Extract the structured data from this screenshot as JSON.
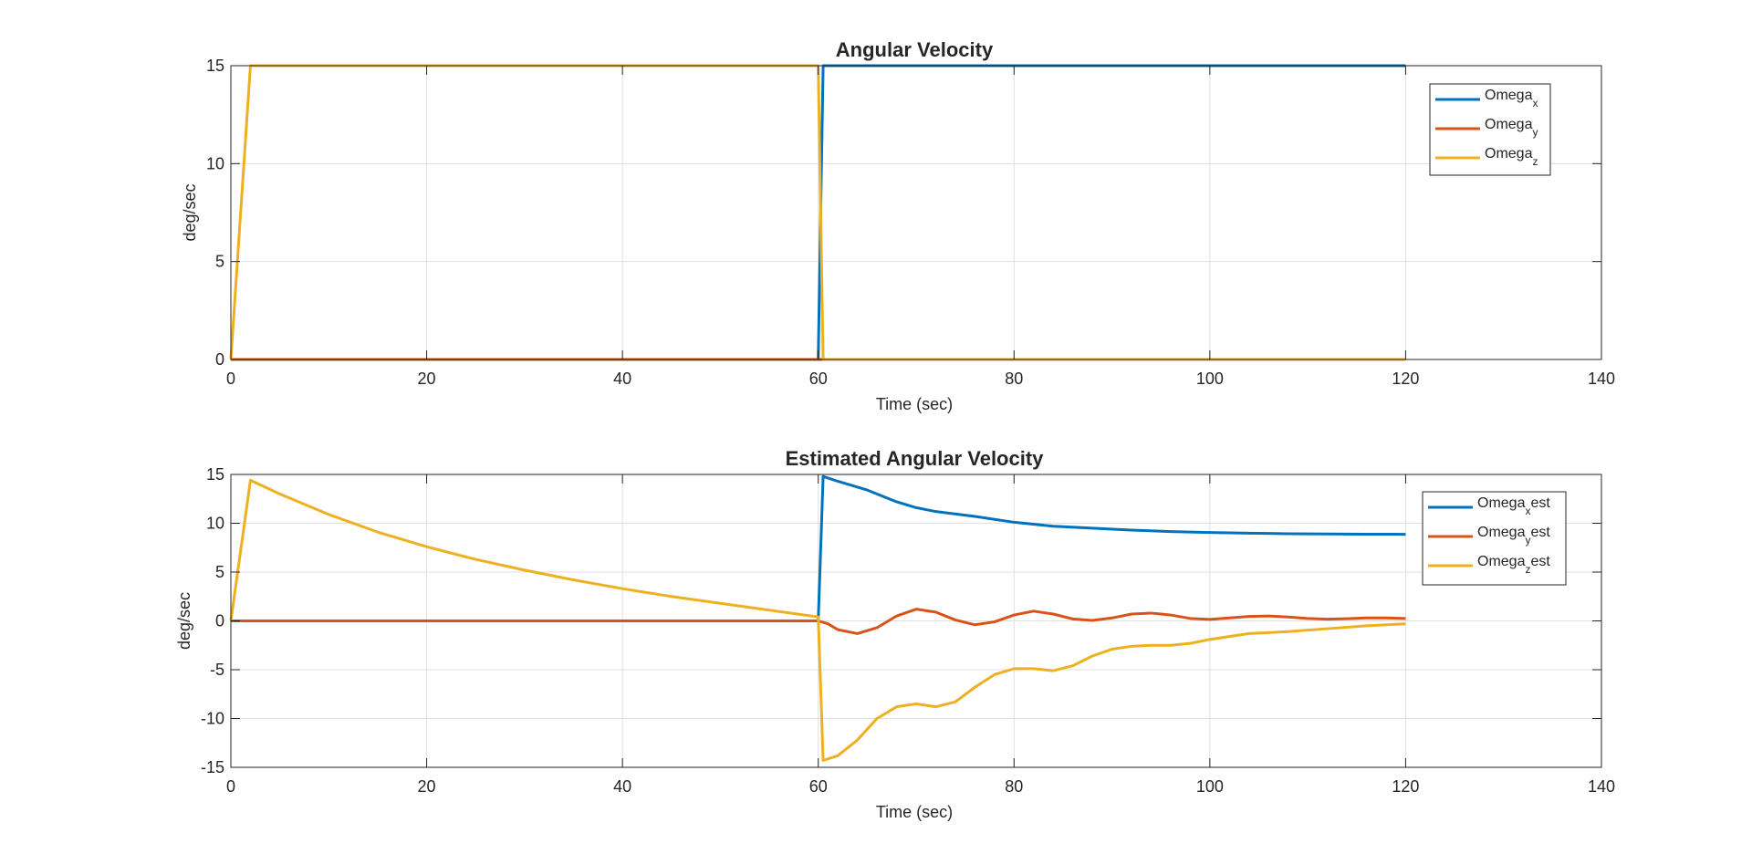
{
  "colors": {
    "omega_x": "#0072BD",
    "omega_y": "#D95319",
    "omega_z": "#EDB120",
    "axis": "#262626",
    "grid": "#dfdfdf"
  },
  "chart_data": [
    {
      "type": "line",
      "title": "Angular Velocity",
      "xlabel": "Time (sec)",
      "ylabel": "deg/sec",
      "xlim": [
        0,
        140
      ],
      "ylim": [
        0,
        15
      ],
      "xticks": [
        0,
        20,
        40,
        60,
        80,
        100,
        120,
        140
      ],
      "yticks": [
        0,
        5,
        10,
        15
      ],
      "grid": true,
      "legend_position": "top-right",
      "series": [
        {
          "name": "Omega",
          "subscript": "x",
          "suffix": "",
          "color_key": "omega_x",
          "x": [
            0,
            60,
            60.5,
            120
          ],
          "y": [
            0,
            0,
            15,
            15
          ]
        },
        {
          "name": "Omega",
          "subscript": "y",
          "suffix": "",
          "color_key": "omega_y",
          "x": [
            0,
            120
          ],
          "y": [
            0,
            0
          ]
        },
        {
          "name": "Omega",
          "subscript": "z",
          "suffix": "",
          "color_key": "omega_z",
          "x": [
            0,
            2,
            60,
            60.5,
            120
          ],
          "y": [
            0,
            15,
            15,
            0,
            0
          ]
        }
      ]
    },
    {
      "type": "line",
      "title": "Estimated Angular Velocity",
      "xlabel": "Time (sec)",
      "ylabel": "deg/sec",
      "xlim": [
        0,
        140
      ],
      "ylim": [
        -15,
        15
      ],
      "xticks": [
        0,
        20,
        40,
        60,
        80,
        100,
        120,
        140
      ],
      "yticks": [
        -15,
        -10,
        -5,
        0,
        5,
        10,
        15
      ],
      "grid": true,
      "legend_position": "top-right",
      "series": [
        {
          "name": "Omega",
          "subscript": "x",
          "suffix": "est",
          "color_key": "omega_x",
          "x": [
            0,
            60,
            60.5,
            62,
            65,
            68,
            70,
            72,
            76,
            80,
            84,
            88,
            92,
            96,
            100,
            104,
            108,
            112,
            116,
            120
          ],
          "y": [
            0,
            0,
            14.8,
            14.3,
            13.4,
            12.2,
            11.6,
            11.2,
            10.7,
            10.1,
            9.7,
            9.5,
            9.3,
            9.15,
            9.05,
            8.98,
            8.93,
            8.9,
            8.88,
            8.87
          ]
        },
        {
          "name": "Omega",
          "subscript": "y",
          "suffix": "est",
          "color_key": "omega_y",
          "x": [
            0,
            60,
            61,
            62,
            64,
            66,
            68,
            70,
            72,
            74,
            76,
            78,
            80,
            82,
            84,
            86,
            88,
            90,
            92,
            94,
            96,
            98,
            100,
            102,
            104,
            106,
            108,
            110,
            112,
            114,
            116,
            118,
            120
          ],
          "y": [
            0,
            0,
            -0.3,
            -0.9,
            -1.3,
            -0.7,
            0.5,
            1.2,
            0.9,
            0.1,
            -0.4,
            -0.1,
            0.6,
            1.0,
            0.7,
            0.2,
            0.05,
            0.3,
            0.7,
            0.8,
            0.6,
            0.25,
            0.15,
            0.3,
            0.45,
            0.5,
            0.4,
            0.25,
            0.18,
            0.22,
            0.3,
            0.3,
            0.25
          ]
        },
        {
          "name": "Omega",
          "subscript": "z",
          "suffix": "est",
          "color_key": "omega_z",
          "x": [
            0,
            2,
            5,
            10,
            15,
            20,
            25,
            30,
            35,
            40,
            45,
            50,
            55,
            60,
            60.5,
            62,
            64,
            66,
            68,
            70,
            72,
            74,
            76,
            78,
            80,
            82,
            84,
            86,
            88,
            90,
            92,
            94,
            96,
            98,
            100,
            104,
            108,
            112,
            116,
            120
          ],
          "y": [
            0,
            14.4,
            13.0,
            10.9,
            9.1,
            7.6,
            6.3,
            5.2,
            4.2,
            3.3,
            2.5,
            1.8,
            1.1,
            0.4,
            -14.3,
            -13.8,
            -12.2,
            -10.0,
            -8.8,
            -8.5,
            -8.8,
            -8.3,
            -6.8,
            -5.5,
            -4.9,
            -4.9,
            -5.1,
            -4.6,
            -3.6,
            -2.9,
            -2.6,
            -2.5,
            -2.5,
            -2.3,
            -1.9,
            -1.3,
            -1.1,
            -0.8,
            -0.5,
            -0.3
          ]
        }
      ]
    }
  ]
}
